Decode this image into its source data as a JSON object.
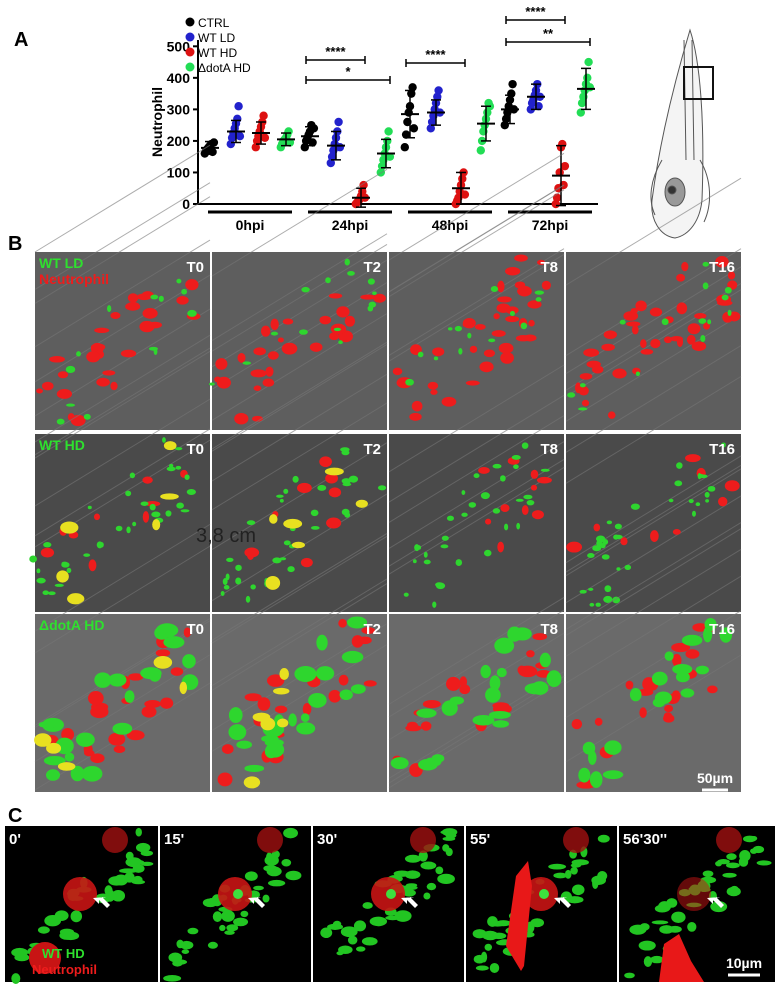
{
  "panel_letters": [
    "A",
    "B",
    "C"
  ],
  "chart_data": {
    "type": "dotplot",
    "y_label": "Neutrophil",
    "categories": [
      "0hpi",
      "24hpi",
      "48hpi",
      "72hpi"
    ],
    "ylim": [
      0,
      520
    ],
    "yticks": [
      0,
      100,
      200,
      300,
      400,
      500
    ],
    "series": [
      {
        "name": "CTRL",
        "color": "#000000",
        "values": [
          178,
          215,
          285,
          300
        ],
        "sd": [
          20,
          30,
          75,
          45
        ],
        "points": [
          [
            160,
            170,
            175,
            180,
            185,
            190,
            165,
            195
          ],
          [
            180,
            200,
            210,
            220,
            230,
            250,
            195,
            240
          ],
          [
            180,
            220,
            260,
            290,
            310,
            350,
            370,
            240
          ],
          [
            250,
            270,
            290,
            310,
            330,
            350,
            380,
            300
          ]
        ]
      },
      {
        "name": "WT LD",
        "color": "#2222cc",
        "values": [
          230,
          185,
          290,
          340
        ],
        "sd": [
          35,
          45,
          40,
          40
        ],
        "points": [
          [
            190,
            210,
            225,
            240,
            255,
            270,
            310,
            215
          ],
          [
            130,
            150,
            170,
            190,
            210,
            230,
            260,
            180
          ],
          [
            240,
            260,
            280,
            300,
            320,
            340,
            360,
            290
          ],
          [
            300,
            320,
            330,
            345,
            360,
            380,
            310,
            340
          ]
        ]
      },
      {
        "name": "WT HD",
        "color": "#dd1111",
        "values": [
          225,
          20,
          50,
          90
        ],
        "sd": [
          35,
          30,
          50,
          95
        ],
        "points": [
          [
            180,
            200,
            215,
            230,
            245,
            260,
            280,
            210
          ],
          [
            0,
            5,
            10,
            15,
            25,
            40,
            60,
            20
          ],
          [
            0,
            10,
            20,
            40,
            60,
            80,
            100,
            30
          ],
          [
            0,
            20,
            50,
            100,
            180,
            190,
            60,
            120
          ]
        ]
      },
      {
        "name": "ΔdotA HD",
        "color": "#22dd55",
        "values": [
          205,
          160,
          255,
          365
        ],
        "sd": [
          20,
          45,
          55,
          65
        ],
        "points": [
          [
            180,
            190,
            200,
            205,
            210,
            220,
            230,
            195
          ],
          [
            100,
            120,
            140,
            160,
            180,
            200,
            230,
            150
          ],
          [
            170,
            200,
            230,
            250,
            270,
            290,
            320,
            310
          ],
          [
            290,
            320,
            340,
            360,
            380,
            400,
            450,
            370
          ]
        ]
      }
    ],
    "significance": [
      {
        "label": "****"
      },
      {
        "label": "*"
      },
      {
        "label": "****"
      },
      {
        "label": "****"
      },
      {
        "label": "**"
      }
    ]
  },
  "panel_b": {
    "rows": [
      {
        "label": "WT LD",
        "sublabel": "Neutrophil"
      },
      {
        "label": "WT HD"
      },
      {
        "label": "ΔdotA HD"
      }
    ],
    "timepoints": [
      "T0",
      "T2",
      "T8",
      "T16"
    ],
    "scale_bar": "50µm",
    "stray_text": "3,8 cm"
  },
  "panel_c": {
    "times": [
      "0'",
      "15'",
      "30'",
      "55'",
      "56'30''"
    ],
    "legend": [
      "WT HD",
      "Neutrophil"
    ],
    "scale_bar": "10µm"
  }
}
